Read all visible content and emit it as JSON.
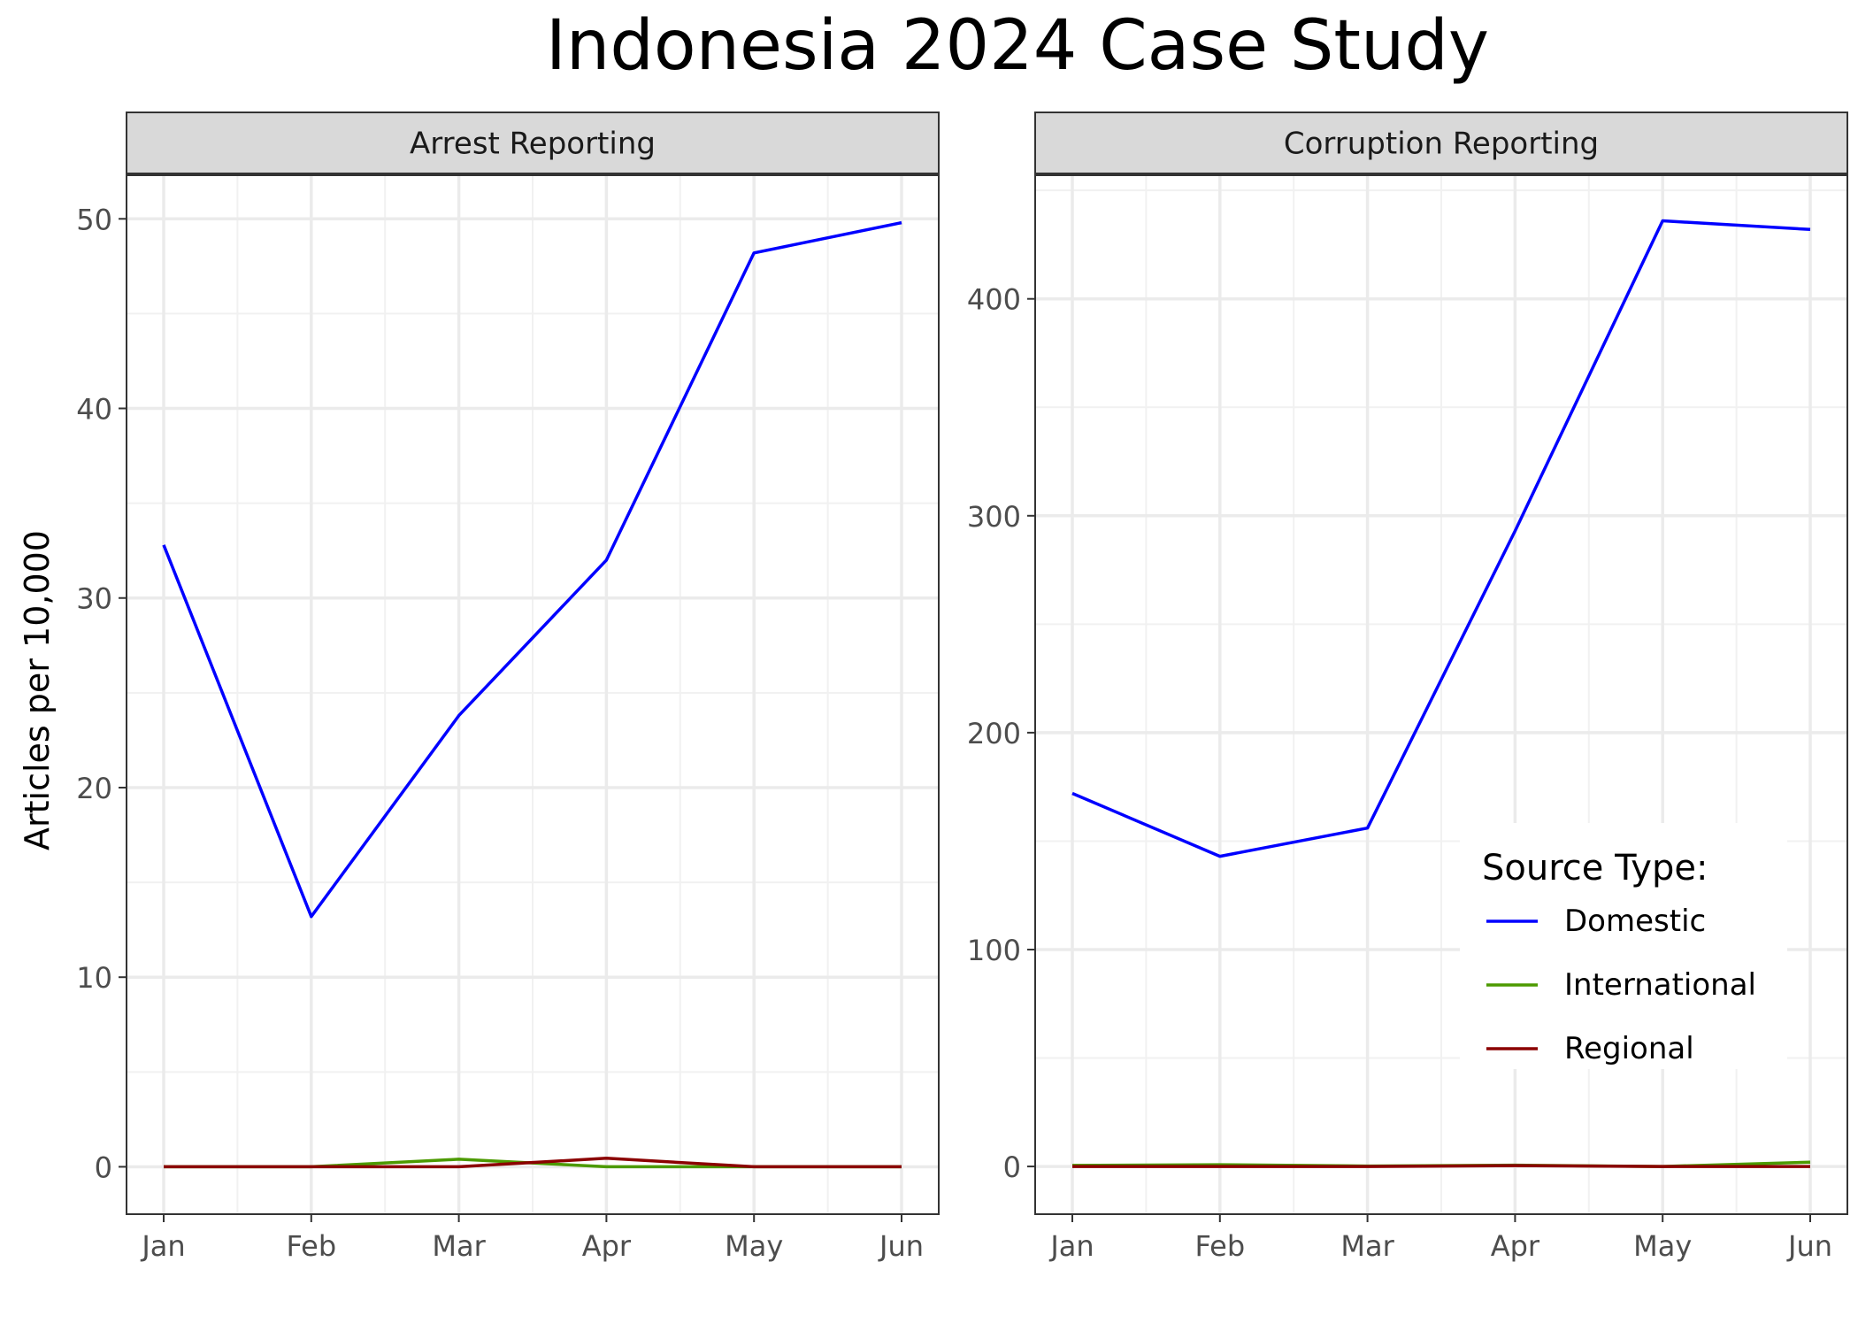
{
  "chart_data": {
    "type": "line",
    "title": "Indonesia 2024 Case Study",
    "ylabel": "Articles per 10,000",
    "xlabel": "",
    "categories": [
      "Jan",
      "Feb",
      "Mar",
      "Apr",
      "May",
      "Jun"
    ],
    "legend": {
      "title": "Source Type:",
      "placement": "inside bottom-right of right panel",
      "entries": [
        {
          "name": "Domestic",
          "color": "#0000ff"
        },
        {
          "name": "International",
          "color": "#4c9a00"
        },
        {
          "name": "Regional",
          "color": "#8b0000"
        }
      ]
    },
    "grid": true,
    "facets": [
      {
        "title": "Arrest Reporting",
        "ylim": [
          -2.5,
          52.3
        ],
        "yticks": [
          0,
          10,
          20,
          30,
          40,
          50
        ],
        "series": [
          {
            "name": "Domestic",
            "color": "#0000ff",
            "values": [
              32.8,
              13.2,
              23.8,
              32.0,
              48.2,
              49.8
            ]
          },
          {
            "name": "International",
            "color": "#4c9a00",
            "values": [
              0.0,
              0.0,
              0.4,
              0.0,
              0.0,
              0.0
            ]
          },
          {
            "name": "Regional",
            "color": "#8b0000",
            "values": [
              0.0,
              0.0,
              0.0,
              0.45,
              0.0,
              0.0
            ]
          }
        ]
      },
      {
        "title": "Corruption Reporting",
        "ylim": [
          -22,
          457
        ],
        "yticks": [
          0,
          100,
          200,
          300,
          400
        ],
        "series": [
          {
            "name": "Domestic",
            "color": "#0000ff",
            "values": [
              172,
              143,
              156,
              293,
              436,
              432
            ]
          },
          {
            "name": "International",
            "color": "#4c9a00",
            "values": [
              0.5,
              0.8,
              0.2,
              0.6,
              0.0,
              2.0
            ]
          },
          {
            "name": "Regional",
            "color": "#8b0000",
            "values": [
              0.0,
              0.0,
              0.0,
              0.4,
              0.0,
              0.0
            ]
          }
        ]
      }
    ]
  }
}
